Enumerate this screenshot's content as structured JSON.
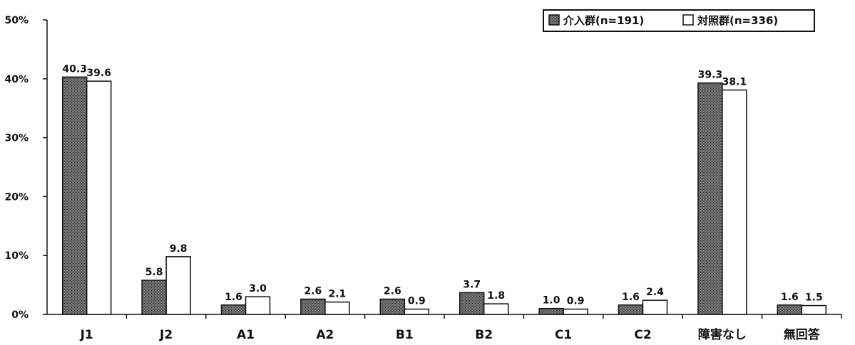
{
  "chart_data": {
    "type": "bar",
    "categories": [
      "J1",
      "J2",
      "A1",
      "A2",
      "B1",
      "B2",
      "C1",
      "C2",
      "障害なし",
      "無回答"
    ],
    "series": [
      {
        "name": "介入群(n=191)",
        "values": [
          40.3,
          5.8,
          1.6,
          2.6,
          2.6,
          3.7,
          1.0,
          1.6,
          39.3,
          1.6
        ],
        "labels": [
          "40.3",
          "5.8",
          "1.6",
          "2.6",
          "2.6",
          "3.7",
          "1.0",
          "1.6",
          "39.3",
          "1.6"
        ],
        "color": "#5a5a5a"
      },
      {
        "name": "対照群(n=336)",
        "values": [
          39.6,
          9.8,
          3.0,
          2.1,
          0.9,
          1.8,
          0.9,
          2.4,
          38.1,
          1.5
        ],
        "labels": [
          "39.6",
          "9.8",
          "3.0",
          "2.1",
          "0.9",
          "1.8",
          "0.9",
          "2.4",
          "38.1",
          "1.5"
        ],
        "color": "#ffffff"
      }
    ],
    "ylim": [
      0,
      50
    ],
    "yticks": [
      "0%",
      "10%",
      "20%",
      "30%",
      "40%",
      "50%"
    ],
    "grid": false,
    "legend_position": "top-right"
  }
}
